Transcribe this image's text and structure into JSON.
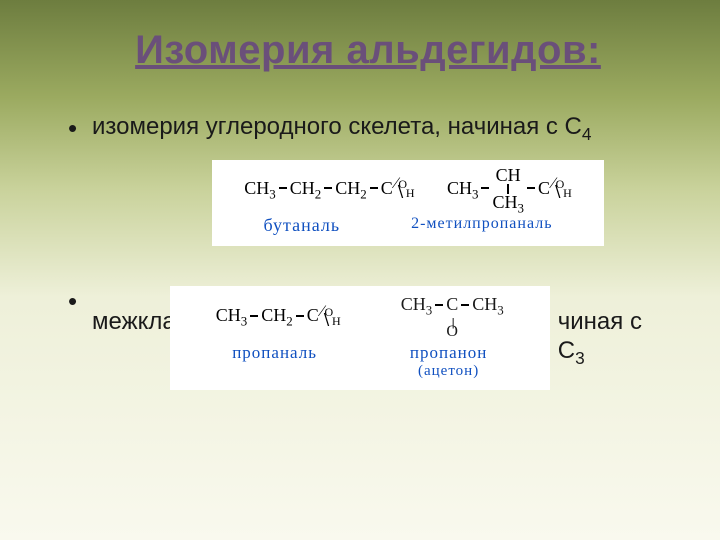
{
  "title": "Изомерия  альдегидов",
  "title_trailing": ":",
  "bullets": {
    "b1_pre": "изомерия углеродного скелета, начиная с С",
    "b1_sub": "4",
    "b2_pre": "межкла",
    "b2_post_pre": "чиная с",
    "b2_post_sub_pre": "С",
    "b2_post_sub": "3"
  },
  "mol1": {
    "a": "CH",
    "a_sub": "3",
    "b": "CH",
    "b_sub": "2",
    "c": "CH",
    "c_sub": "2",
    "name": "бутаналь"
  },
  "mol2": {
    "a": "CH",
    "a_sub": "3",
    "b": "CH",
    "below": "CH",
    "below_sub": "3",
    "name": "2-метилпропаналь"
  },
  "mol3": {
    "a": "CH",
    "a_sub": "3",
    "b": "CH",
    "b_sub": "2",
    "name": "пропаналь"
  },
  "mol4": {
    "a": "CH",
    "a_sub": "3",
    "b": "C",
    "c": "CH",
    "c_sub": "3",
    "o": "O",
    "name": "пропанон",
    "name2": "(ацетон)"
  },
  "cho": {
    "c": "C",
    "o": "O",
    "h": "H"
  },
  "colors": {
    "title": "#6a4f7a",
    "name": "#1050c0",
    "text": "#1a1a1a"
  }
}
